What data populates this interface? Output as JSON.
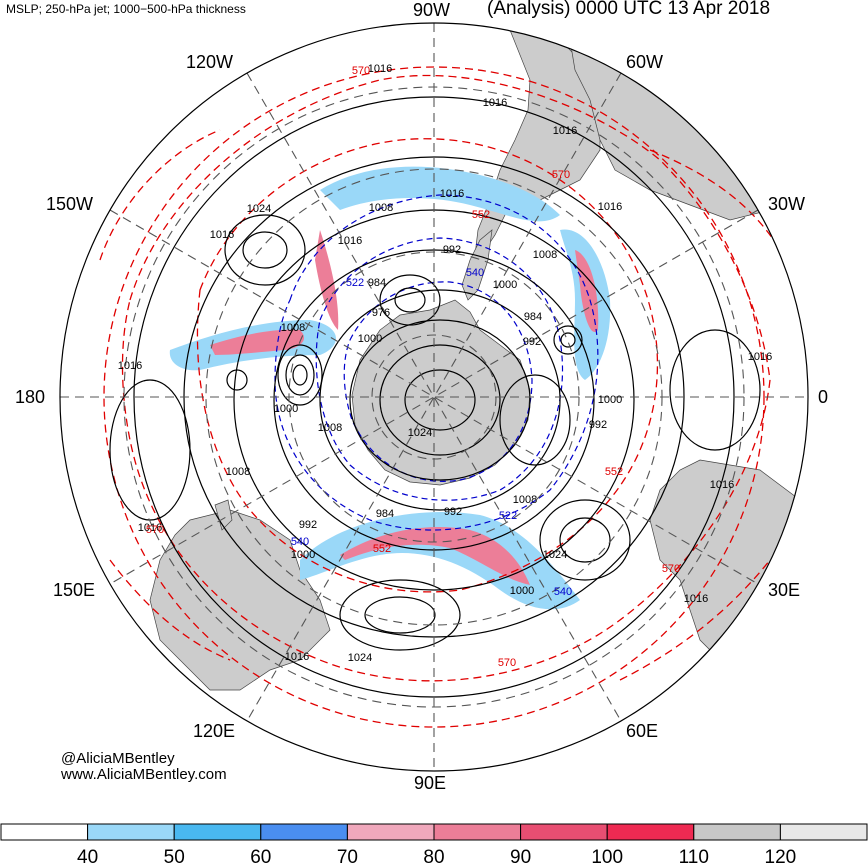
{
  "header": {
    "left_title": "MSLP; 250-hPa jet; 1000−500-hPa thickness",
    "right_title": "(Analysis) 0000 UTC 13 Apr 2018"
  },
  "credit": {
    "handle": "@AliciaMBentley",
    "website": "www.AliciaMBentley.com"
  },
  "longitude_labels": {
    "lon_90w": "90W",
    "lon_120w": "120W",
    "lon_60w": "60W",
    "lon_150w": "150W",
    "lon_30w": "30W",
    "lon_180": "180",
    "lon_0": "0",
    "lon_150e": "150E",
    "lon_30e": "30E",
    "lon_120e": "120E",
    "lon_60e": "60E",
    "lon_90e": "90E"
  },
  "contour_labels": {
    "mslp_1016_a": "1016",
    "mslp_1016_b": "1016",
    "mslp_1016_c": "1016",
    "mslp_1016_d": "1016",
    "mslp_1016_e": "1016",
    "mslp_1016_f": "1016",
    "mslp_1016_g": "1016",
    "mslp_1016_h": "1016",
    "mslp_1016_i": "1016",
    "mslp_1016_j": "1016",
    "mslp_1016_k": "1016",
    "mslp_1016_l": "1016",
    "mslp_1016_m": "1016",
    "mslp_1024_a": "1024",
    "mslp_1024_b": "1024",
    "mslp_1024_c": "1024",
    "mslp_1024_d": "1024",
    "mslp_1008_a": "1008",
    "mslp_1008_b": "1008",
    "mslp_1008_c": "1008",
    "mslp_1008_d": "1008",
    "mslp_1008_e": "1008",
    "mslp_1008_f": "1008",
    "mslp_1000_a": "1000",
    "mslp_1000_b": "1000",
    "mslp_1000_c": "1000",
    "mslp_1000_d": "1000",
    "mslp_1000_e": "1000",
    "mslp_1000_f": "1000",
    "mslp_992_a": "992",
    "mslp_992_b": "992",
    "mslp_992_c": "992",
    "mslp_992_d": "992",
    "mslp_992_e": "992",
    "mslp_984_a": "984",
    "mslp_984_b": "984",
    "mslp_984_c": "984",
    "mslp_976": "976",
    "thk_570_a": "570",
    "thk_570_b": "570",
    "thk_570_c": "570",
    "thk_570_d": "570",
    "thk_552_a": "552",
    "thk_552_b": "552",
    "thk_552_c": "552",
    "thk_552_d": "552",
    "thk_540_a": "540",
    "thk_540_b": "540",
    "thk_540_c": "540",
    "thk_522": "522",
    "thk_522_b": "522"
  },
  "colorbar": {
    "labels": [
      "40",
      "50",
      "60",
      "70",
      "80",
      "90",
      "100",
      "110",
      "120"
    ],
    "colors": [
      "#ffffff",
      "#9ad8f8",
      "#49b8f0",
      "#4a8ef0",
      "#f0a8bc",
      "#ec7e98",
      "#e84e72",
      "#ee2a52",
      "#c8c8c8",
      "#e8e8e8"
    ]
  },
  "colors": {
    "mslp": "#000000",
    "thickness_warm": "#e00000",
    "thickness_cold": "#0000cc",
    "land": "#cccccc",
    "grid": "#555555"
  }
}
